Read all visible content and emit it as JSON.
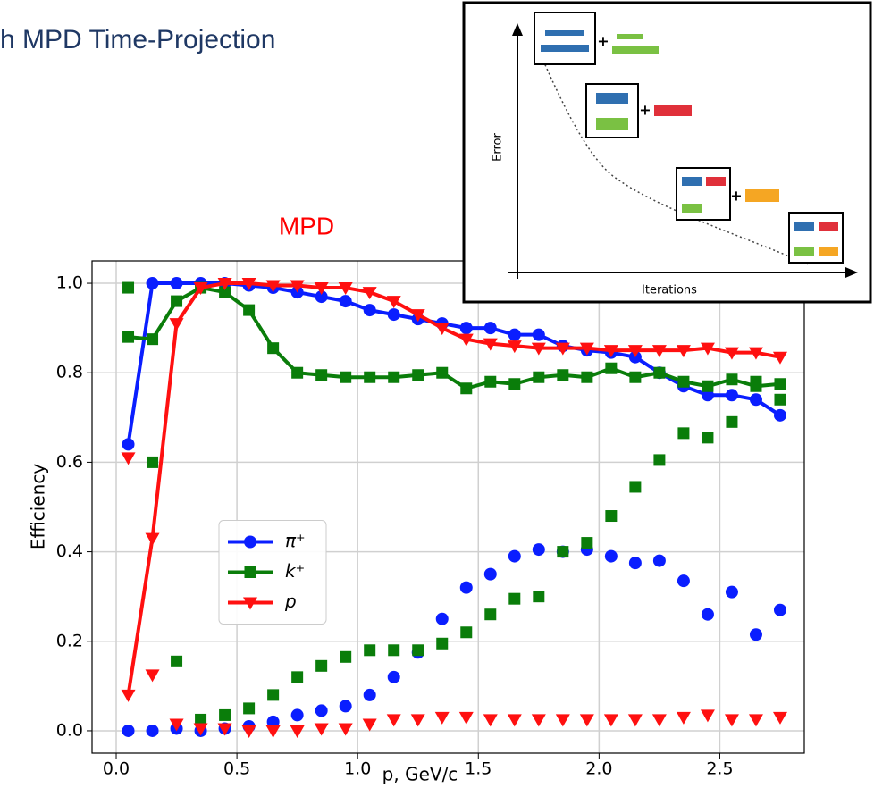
{
  "header": {
    "title": "h MPD Time-Projection"
  },
  "inset": {
    "y_label": "Error",
    "x_label": "Iterations"
  },
  "chart_data": {
    "type": "line",
    "title": "MPD",
    "x_label": "p, GeV/c",
    "y_label": "Efficiency",
    "x": [
      0.05,
      0.15,
      0.25,
      0.35,
      0.45,
      0.55,
      0.65,
      0.75,
      0.85,
      0.95,
      1.05,
      1.15,
      1.25,
      1.35,
      1.45,
      1.55,
      1.65,
      1.75,
      1.85,
      1.95,
      2.05,
      2.15,
      2.25,
      2.35,
      2.45,
      2.55,
      2.65,
      2.75
    ],
    "series": [
      {
        "name": "π⁺",
        "color": "#0a1eff",
        "marker": "circle",
        "line": true,
        "values": [
          0.64,
          1.0,
          1.0,
          1.0,
          1.0,
          0.995,
          0.99,
          0.98,
          0.97,
          0.96,
          0.94,
          0.93,
          0.92,
          0.91,
          0.9,
          0.9,
          0.885,
          0.885,
          0.86,
          0.85,
          0.845,
          0.835,
          0.8,
          0.77,
          0.75,
          0.75,
          0.74,
          0.705
        ]
      },
      {
        "name": "k⁺",
        "color": "#0a7d0a",
        "marker": "square",
        "line": true,
        "values": [
          0.88,
          0.875,
          0.96,
          0.99,
          0.98,
          0.94,
          0.855,
          0.8,
          0.795,
          0.79,
          0.79,
          0.79,
          0.795,
          0.8,
          0.765,
          0.78,
          0.775,
          0.79,
          0.795,
          0.79,
          0.81,
          0.79,
          0.8,
          0.78,
          0.77,
          0.785,
          0.77,
          0.775
        ]
      },
      {
        "name": "p",
        "color": "#ff1010",
        "marker": "triangle-down",
        "line": true,
        "values": [
          0.08,
          0.43,
          0.91,
          0.99,
          1.0,
          1.0,
          0.995,
          0.995,
          0.99,
          0.99,
          0.98,
          0.96,
          0.93,
          0.9,
          0.875,
          0.865,
          0.86,
          0.855,
          0.855,
          0.855,
          0.85,
          0.85,
          0.85,
          0.85,
          0.855,
          0.845,
          0.845,
          0.835
        ]
      },
      {
        "color": "#0a1eff",
        "marker": "circle",
        "line": false,
        "values": [
          0.0,
          0.0,
          0.005,
          0.0,
          0.005,
          0.01,
          0.02,
          0.035,
          0.045,
          0.055,
          0.08,
          0.12,
          0.175,
          0.25,
          0.32,
          0.35,
          0.39,
          0.405,
          0.4,
          0.405,
          0.39,
          0.375,
          0.38,
          0.335,
          0.26,
          0.31,
          0.215,
          0.27
        ]
      },
      {
        "color": "#0a7d0a",
        "marker": "square",
        "line": false,
        "values": [
          0.99,
          0.6,
          0.155,
          0.025,
          0.035,
          0.05,
          0.08,
          0.12,
          0.145,
          0.165,
          0.18,
          0.18,
          0.18,
          0.195,
          0.22,
          0.26,
          0.295,
          0.3,
          0.4,
          0.42,
          0.48,
          0.545,
          0.605,
          0.665,
          0.655,
          0.69,
          0.78,
          0.74
        ]
      },
      {
        "color": "#ff1010",
        "marker": "triangle-down",
        "line": false,
        "values": [
          0.61,
          0.125,
          0.015,
          0.005,
          0.005,
          0.0,
          0.0,
          0.0,
          0.005,
          0.005,
          0.015,
          0.025,
          0.025,
          0.03,
          0.03,
          0.025,
          0.025,
          0.025,
          0.025,
          0.025,
          0.025,
          0.025,
          0.025,
          0.03,
          0.035,
          0.025,
          0.025,
          0.03
        ]
      }
    ],
    "xlim": [
      -0.1,
      2.85
    ],
    "ylim": [
      -0.05,
      1.05
    ],
    "xticks": [
      {
        "value": 0,
        "label": "0.0"
      },
      0.5,
      {
        "value": 1,
        "label": "1.0"
      },
      1.5,
      {
        "value": 2,
        "label": "2.0"
      },
      2.5
    ],
    "yticks": [
      {
        "value": 0,
        "label": "0.0"
      },
      0.2,
      0.4,
      0.6,
      0.8,
      {
        "value": 1,
        "label": "1.0"
      }
    ],
    "grid": true,
    "legend_loc": "center left"
  }
}
